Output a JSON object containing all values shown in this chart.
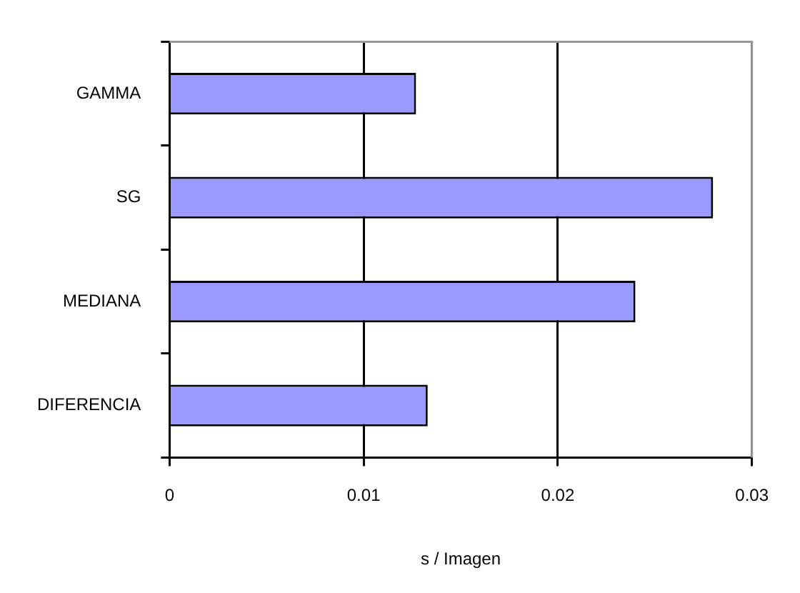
{
  "chart_data": {
    "type": "bar",
    "orientation": "horizontal",
    "xlabel": "s / Imagen",
    "categories": [
      "GAMMA",
      "SG",
      "MEDIANA",
      "DIFERENCIA"
    ],
    "values": [
      0.0127,
      0.028,
      0.024,
      0.0133
    ],
    "color": "#9999ff",
    "xlim": [
      0,
      0.03
    ],
    "xticks": [
      0,
      0.01,
      0.02,
      0.03
    ],
    "grid": "x",
    "legend": false
  }
}
